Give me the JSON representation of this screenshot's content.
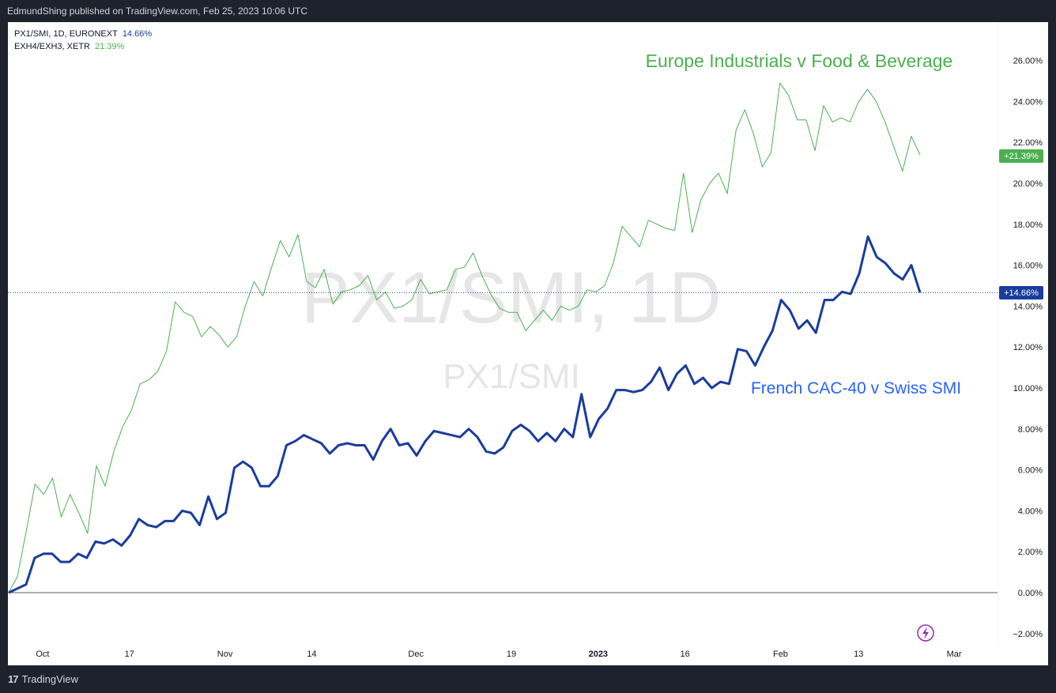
{
  "header": {
    "published_by": "EdmundShing published on TradingView.com, Feb 25, 2023 10:06 UTC"
  },
  "footer": {
    "brand": "TradingView",
    "brand_mark": "17"
  },
  "legend": [
    {
      "symbol": "PX1/SMI, 1D, EURONEXT",
      "value": "14.66%"
    },
    {
      "symbol": "EXH4/EXH3, XETR",
      "value": "21.39%"
    }
  ],
  "watermark": {
    "main": "PX1/SMI, 1D",
    "sub": "PX1/SMI"
  },
  "colors": {
    "series1": "#1a3c9c",
    "series2": "#4caf50",
    "watermark": "#e8e8e8"
  },
  "annotations": {
    "series2_label": "Europe Industrials v Food & Beverage",
    "series1_label": "French CAC-40 v Swiss SMI"
  },
  "badges": {
    "series1": "+14.66%",
    "series2": "+21.39%"
  },
  "chart_data": {
    "type": "line",
    "y_unit": "%",
    "ylim": [
      -2.4,
      26.5
    ],
    "y_ticks": [
      26,
      24,
      22,
      20,
      18,
      16,
      14,
      12,
      10,
      8,
      6,
      4,
      2,
      0,
      -2
    ],
    "y_tick_labels": [
      "26.00%",
      "24.00%",
      "22.00%",
      "20.00%",
      "18.00%",
      "16.00%",
      "14.00%",
      "12.00%",
      "10.00%",
      "8.00%",
      "6.00%",
      "4.00%",
      "2.00%",
      "0.00%",
      "−2.00%"
    ],
    "x_tick_labels": [
      "Oct",
      "17",
      "Nov",
      "14",
      "Dec",
      "19",
      "2023",
      "16",
      "Feb",
      "13",
      "Mar"
    ],
    "x_tick_positions": [
      3,
      13,
      24,
      34,
      46,
      57,
      67,
      77,
      88,
      97,
      108
    ],
    "x_range": [
      0,
      114
    ],
    "baseline": 0,
    "series": [
      {
        "name": "PX1/SMI, 1D, EURONEXT",
        "last_value": 14.66,
        "values": [
          0.0,
          0.2,
          0.4,
          1.7,
          1.9,
          1.9,
          1.5,
          1.5,
          1.9,
          1.7,
          2.5,
          2.4,
          2.6,
          2.3,
          2.8,
          3.6,
          3.3,
          3.2,
          3.5,
          3.5,
          4.0,
          3.9,
          3.3,
          4.7,
          3.6,
          3.9,
          6.1,
          6.4,
          6.1,
          5.2,
          5.2,
          5.7,
          7.2,
          7.4,
          7.7,
          7.5,
          7.3,
          6.8,
          7.2,
          7.3,
          7.2,
          7.2,
          6.5,
          7.4,
          8.0,
          7.2,
          7.3,
          6.7,
          7.4,
          7.9,
          7.8,
          7.7,
          7.6,
          8.0,
          7.6,
          6.9,
          6.8,
          7.1,
          7.9,
          8.2,
          7.9,
          7.4,
          7.8,
          7.4,
          8.0,
          7.6,
          9.7,
          7.6,
          8.5,
          9.0,
          9.9,
          9.9,
          9.8,
          9.9,
          10.3,
          11.0,
          9.9,
          10.7,
          11.1,
          10.2,
          10.5,
          10.0,
          10.3,
          10.2,
          11.9,
          11.8,
          11.1,
          12.0,
          12.8,
          14.3,
          13.8,
          12.9,
          13.3,
          12.7,
          14.3,
          14.3,
          14.7,
          14.6,
          15.6,
          17.4,
          16.4,
          16.1,
          15.6,
          15.3,
          16.0,
          14.66
        ]
      },
      {
        "name": "EXH4/EXH3, XETR",
        "last_value": 21.39,
        "values": [
          0.0,
          0.8,
          3.0,
          5.3,
          4.8,
          5.6,
          3.7,
          4.8,
          3.9,
          2.9,
          6.2,
          5.2,
          6.9,
          8.1,
          8.9,
          10.2,
          10.4,
          10.8,
          11.8,
          14.2,
          13.7,
          13.5,
          12.5,
          13.0,
          12.6,
          12.0,
          12.5,
          14.0,
          15.2,
          14.5,
          15.9,
          17.2,
          16.4,
          17.5,
          15.2,
          14.9,
          15.8,
          14.1,
          14.7,
          14.8,
          15.0,
          15.5,
          14.3,
          14.7,
          13.9,
          14.0,
          14.3,
          15.3,
          14.6,
          14.7,
          14.8,
          15.8,
          15.9,
          16.6,
          15.5,
          14.6,
          13.9,
          13.7,
          13.7,
          12.8,
          13.3,
          13.8,
          13.3,
          14.0,
          13.8,
          14.0,
          14.8,
          14.7,
          15.0,
          16.1,
          17.9,
          17.4,
          16.9,
          18.2,
          18.0,
          17.8,
          17.7,
          20.5,
          17.6,
          19.2,
          20.0,
          20.5,
          19.5,
          22.6,
          23.6,
          22.4,
          20.8,
          21.5,
          24.9,
          24.3,
          23.1,
          23.1,
          21.6,
          23.8,
          23.0,
          23.2,
          23.0,
          24.0,
          24.6,
          24.0,
          23.0,
          21.8,
          20.6,
          22.3,
          21.39
        ]
      }
    ]
  }
}
